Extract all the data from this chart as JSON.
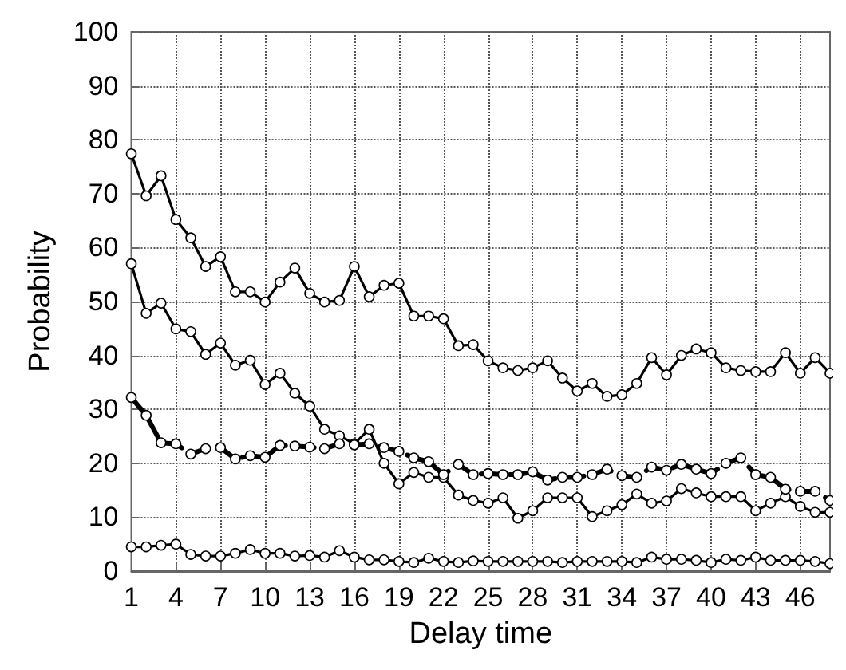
{
  "chart_data": {
    "type": "line",
    "xlabel": "Delay time",
    "ylabel": "Probability",
    "x": [
      1,
      2,
      3,
      4,
      5,
      6,
      7,
      8,
      9,
      10,
      11,
      12,
      13,
      14,
      15,
      16,
      17,
      18,
      19,
      20,
      21,
      22,
      23,
      24,
      25,
      26,
      27,
      28,
      29,
      30,
      31,
      32,
      33,
      34,
      35,
      36,
      37,
      38,
      39,
      40,
      41,
      42,
      43,
      44,
      45,
      46,
      47,
      48
    ],
    "series": [
      {
        "color": "#000000",
        "line_style": "solid",
        "values": [
          77.4,
          69.6,
          73.3,
          65.2,
          61.8,
          56.5,
          58.3,
          51.8,
          51.8,
          49.9,
          53.6,
          56.2,
          51.5,
          49.9,
          50.2,
          56.5,
          50.9,
          53,
          53.4,
          47.3,
          47.3,
          46.8,
          41.8,
          42,
          39,
          37.7,
          37.2,
          37.7,
          39,
          35.8,
          33.4,
          34.8,
          32.4,
          32.7,
          34.8,
          39.6,
          36.4,
          40,
          41.2,
          40.5,
          37.7,
          37.2,
          37,
          37,
          40.5,
          36.7,
          39.6,
          36.7
        ]
      },
      {
        "color": "#000000",
        "line_style": "solid",
        "values": [
          57,
          47.8,
          49.7,
          44.9,
          44.4,
          40.2,
          42.3,
          38.2,
          39.1,
          34.6,
          36.7,
          33,
          30.6,
          26.3,
          25.1,
          23.6,
          26.3,
          20,
          16.2,
          18.3,
          17.4,
          17.4,
          14.1,
          13.1,
          12.6,
          13.6,
          9.8,
          11.2,
          13.6,
          13.6,
          13.6,
          10.1,
          11.2,
          12.3,
          14.3,
          12.6,
          13,
          15.3,
          14.5,
          13.8,
          13.8,
          13.8,
          11.2,
          12.6,
          13.8,
          12,
          10.9,
          10.9
        ]
      },
      {
        "color": "#000000",
        "line_style": "dashed",
        "values": [
          32.2,
          28.9,
          23.8,
          23.6,
          21.7,
          22.7,
          22.9,
          20.8,
          21.4,
          21.1,
          23.3,
          23.2,
          23,
          22.7,
          23.6,
          23.4,
          23.6,
          22.9,
          22.2,
          21,
          20.3,
          17.9,
          19.8,
          17.9,
          18.1,
          17.9,
          17.9,
          18.4,
          16.9,
          17.4,
          17.4,
          17.9,
          18.9,
          17.7,
          17.4,
          19.3,
          18.7,
          19.8,
          18.9,
          18.1,
          20,
          21,
          17.9,
          17.4,
          15.2,
          14.8,
          14.8,
          13.1
        ]
      },
      {
        "color": "#000000",
        "line_style": "solid",
        "values": [
          4.5,
          4.5,
          4.8,
          5,
          3.1,
          2.8,
          2.8,
          3.3,
          4,
          3.3,
          3.3,
          2.8,
          2.9,
          2.6,
          3.8,
          2.6,
          2.1,
          2.1,
          1.8,
          1.6,
          2.4,
          1.8,
          1.6,
          1.9,
          1.8,
          1.8,
          1.8,
          1.8,
          1.8,
          1.6,
          1.8,
          1.8,
          1.8,
          1.8,
          1.6,
          2.6,
          2.2,
          2.2,
          2,
          1.6,
          2.2,
          2,
          2.6,
          2,
          2,
          2,
          1.8,
          1.4
        ]
      }
    ],
    "xlim": [
      1,
      48
    ],
    "xticks": [
      1,
      4,
      7,
      10,
      13,
      16,
      19,
      22,
      25,
      28,
      31,
      34,
      37,
      40,
      43,
      46
    ],
    "ylim": [
      0,
      100
    ],
    "yticks": [
      0,
      10,
      20,
      30,
      40,
      50,
      60,
      70,
      80,
      90,
      100
    ],
    "grid": true,
    "marker": "circle"
  }
}
